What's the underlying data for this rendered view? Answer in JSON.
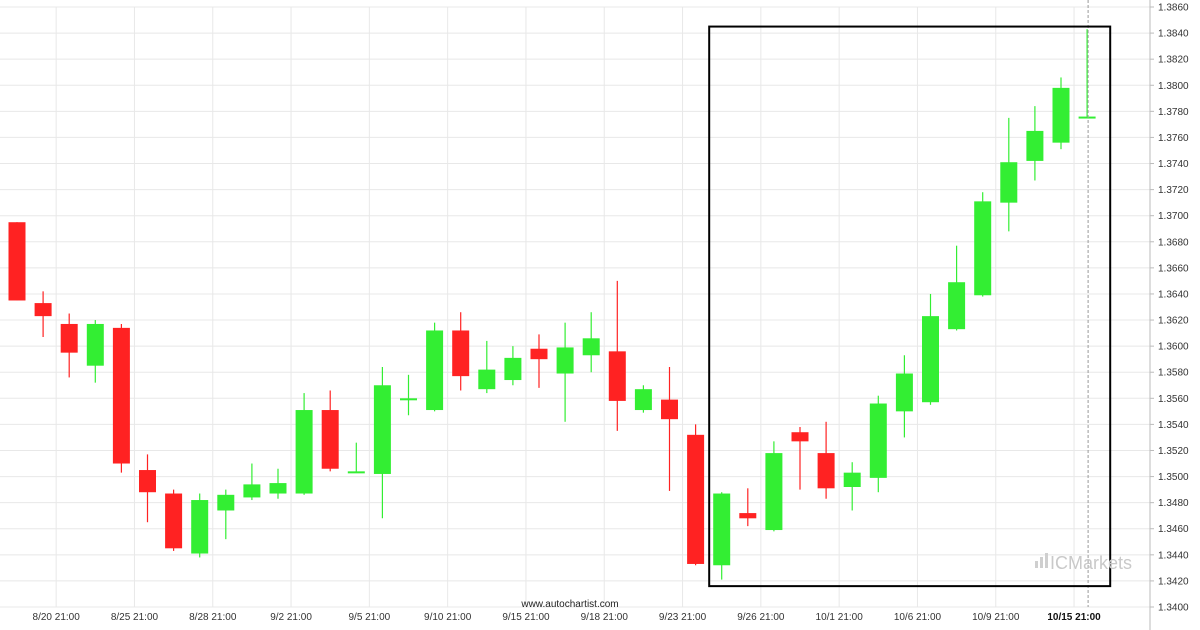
{
  "chart_data": {
    "type": "candlestick",
    "watermark": "www.autochartist.com",
    "brand": "ICMarkets",
    "colors": {
      "up": "#33ee33",
      "down": "#ff2222",
      "grid": "#e8e8e8",
      "box": "#000000",
      "axis": "#bbbbbb"
    },
    "ylim": [
      1.34,
      1.386
    ],
    "y_ticks": [
      "1.3400",
      "1.3420",
      "1.3440",
      "1.3460",
      "1.3480",
      "1.3500",
      "1.3520",
      "1.3540",
      "1.3560",
      "1.3580",
      "1.3600",
      "1.3620",
      "1.3640",
      "1.3660",
      "1.3680",
      "1.3700",
      "1.3720",
      "1.3740",
      "1.3760",
      "1.3780",
      "1.3800",
      "1.3820",
      "1.3840",
      "1.3860"
    ],
    "x_ticks": [
      {
        "index": 1.5,
        "label": "8/20 21:00"
      },
      {
        "index": 4.5,
        "label": "8/25 21:00"
      },
      {
        "index": 7.5,
        "label": "8/28 21:00"
      },
      {
        "index": 10.5,
        "label": "9/2 21:00"
      },
      {
        "index": 13.5,
        "label": "9/5 21:00"
      },
      {
        "index": 16.5,
        "label": "9/10 21:00"
      },
      {
        "index": 19.5,
        "label": "9/15 21:00"
      },
      {
        "index": 22.5,
        "label": "9/18 21:00"
      },
      {
        "index": 25.5,
        "label": "9/23 21:00"
      },
      {
        "index": 28.5,
        "label": "9/26 21:00"
      },
      {
        "index": 31.5,
        "label": "10/1 21:00"
      },
      {
        "index": 34.5,
        "label": "10/6 21:00"
      },
      {
        "index": 37.5,
        "label": "10/9 21:00"
      },
      {
        "index": 40.5,
        "label": "10/15 21:00",
        "bold": true
      }
    ],
    "candles": [
      {
        "o": 1.3695,
        "h": 1.3695,
        "l": 1.3635,
        "c": 1.3635
      },
      {
        "o": 1.3633,
        "h": 1.3642,
        "l": 1.3607,
        "c": 1.3623
      },
      {
        "o": 1.3617,
        "h": 1.3625,
        "l": 1.3576,
        "c": 1.3595
      },
      {
        "o": 1.3585,
        "h": 1.362,
        "l": 1.3572,
        "c": 1.3617
      },
      {
        "o": 1.3614,
        "h": 1.3617,
        "l": 1.3503,
        "c": 1.351
      },
      {
        "o": 1.3505,
        "h": 1.3517,
        "l": 1.3465,
        "c": 1.3488
      },
      {
        "o": 1.3487,
        "h": 1.349,
        "l": 1.3443,
        "c": 1.3445
      },
      {
        "o": 1.3441,
        "h": 1.3487,
        "l": 1.3438,
        "c": 1.3482
      },
      {
        "o": 1.3474,
        "h": 1.349,
        "l": 1.3452,
        "c": 1.3486
      },
      {
        "o": 1.3484,
        "h": 1.351,
        "l": 1.3482,
        "c": 1.3494
      },
      {
        "o": 1.3487,
        "h": 1.3506,
        "l": 1.3483,
        "c": 1.3495
      },
      {
        "o": 1.3487,
        "h": 1.3564,
        "l": 1.3486,
        "c": 1.3551
      },
      {
        "o": 1.3551,
        "h": 1.3566,
        "l": 1.3504,
        "c": 1.3506
      },
      {
        "o": 1.3504,
        "h": 1.3526,
        "l": 1.3503,
        "c": 1.3504
      },
      {
        "o": 1.3502,
        "h": 1.3584,
        "l": 1.3468,
        "c": 1.357
      },
      {
        "o": 1.356,
        "h": 1.3578,
        "l": 1.3547,
        "c": 1.356
      },
      {
        "o": 1.3551,
        "h": 1.3618,
        "l": 1.355,
        "c": 1.3612
      },
      {
        "o": 1.3612,
        "h": 1.3626,
        "l": 1.3566,
        "c": 1.3577
      },
      {
        "o": 1.3567,
        "h": 1.3604,
        "l": 1.3564,
        "c": 1.3582
      },
      {
        "o": 1.3574,
        "h": 1.36,
        "l": 1.357,
        "c": 1.3591
      },
      {
        "o": 1.3598,
        "h": 1.3609,
        "l": 1.3568,
        "c": 1.359
      },
      {
        "o": 1.3579,
        "h": 1.3618,
        "l": 1.3542,
        "c": 1.3599
      },
      {
        "o": 1.3593,
        "h": 1.3626,
        "l": 1.358,
        "c": 1.3606
      },
      {
        "o": 1.3596,
        "h": 1.365,
        "l": 1.3535,
        "c": 1.3558
      },
      {
        "o": 1.3551,
        "h": 1.357,
        "l": 1.3549,
        "c": 1.3567
      },
      {
        "o": 1.3559,
        "h": 1.3584,
        "l": 1.3489,
        "c": 1.3544
      },
      {
        "o": 1.3532,
        "h": 1.354,
        "l": 1.3432,
        "c": 1.3433
      },
      {
        "o": 1.3432,
        "h": 1.3488,
        "l": 1.3421,
        "c": 1.3487
      },
      {
        "o": 1.3472,
        "h": 1.3491,
        "l": 1.3462,
        "c": 1.3468
      },
      {
        "o": 1.3459,
        "h": 1.3527,
        "l": 1.3458,
        "c": 1.3518
      },
      {
        "o": 1.3534,
        "h": 1.3538,
        "l": 1.349,
        "c": 1.3527
      },
      {
        "o": 1.3518,
        "h": 1.3542,
        "l": 1.3483,
        "c": 1.3491
      },
      {
        "o": 1.3492,
        "h": 1.3511,
        "l": 1.3474,
        "c": 1.3503
      },
      {
        "o": 1.3499,
        "h": 1.3562,
        "l": 1.3488,
        "c": 1.3556
      },
      {
        "o": 1.355,
        "h": 1.3593,
        "l": 1.353,
        "c": 1.3579
      },
      {
        "o": 1.3557,
        "h": 1.364,
        "l": 1.3555,
        "c": 1.3623
      },
      {
        "o": 1.3613,
        "h": 1.3677,
        "l": 1.3612,
        "c": 1.3649
      },
      {
        "o": 1.3639,
        "h": 1.3718,
        "l": 1.3638,
        "c": 1.3711
      },
      {
        "o": 1.371,
        "h": 1.3775,
        "l": 1.3688,
        "c": 1.3741
      },
      {
        "o": 1.3742,
        "h": 1.3784,
        "l": 1.3727,
        "c": 1.3765
      },
      {
        "o": 1.3756,
        "h": 1.3806,
        "l": 1.3751,
        "c": 1.3798
      },
      {
        "o": 1.3776,
        "h": 1.3843,
        "l": 1.3776,
        "c": 1.3776
      }
    ],
    "highlight_box": {
      "from_index": 27,
      "to_index": 42,
      "low": 1.3416,
      "high": 1.3845
    },
    "current_line_index": 41
  }
}
